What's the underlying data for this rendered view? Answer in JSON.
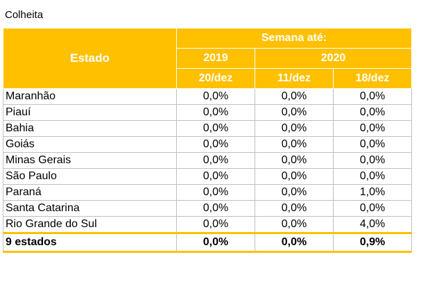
{
  "caption": "Colheita",
  "header": {
    "state_label": "Estado",
    "group_label": "Semana até:",
    "years": [
      "2019",
      "2020"
    ],
    "dates": [
      "20/dez",
      "11/dez",
      "18/dez"
    ]
  },
  "rows": [
    {
      "state": "Maranhão",
      "values": [
        "0,0%",
        "0,0%",
        "0,0%"
      ]
    },
    {
      "state": "Piauí",
      "values": [
        "0,0%",
        "0,0%",
        "0,0%"
      ]
    },
    {
      "state": "Bahia",
      "values": [
        "0,0%",
        "0,0%",
        "0,0%"
      ]
    },
    {
      "state": "Goiás",
      "values": [
        "0,0%",
        "0,0%",
        "0,0%"
      ]
    },
    {
      "state": "Minas Gerais",
      "values": [
        "0,0%",
        "0,0%",
        "0,0%"
      ]
    },
    {
      "state": "São Paulo",
      "values": [
        "0,0%",
        "0,0%",
        "0,0%"
      ]
    },
    {
      "state": "Paraná",
      "values": [
        "0,0%",
        "0,0%",
        "1,0%"
      ]
    },
    {
      "state": "Santa Catarina",
      "values": [
        "0,0%",
        "0,0%",
        "0,0%"
      ]
    },
    {
      "state": "Rio Grande do Sul",
      "values": [
        "0,0%",
        "0,0%",
        "4,0%"
      ]
    }
  ],
  "total": {
    "state": "9 estados",
    "values": [
      "0,0%",
      "0,0%",
      "0,9%"
    ]
  },
  "colors": {
    "header_bg": "#ffc000",
    "header_text": "#ffffff",
    "grid": "#bfbfbf"
  }
}
